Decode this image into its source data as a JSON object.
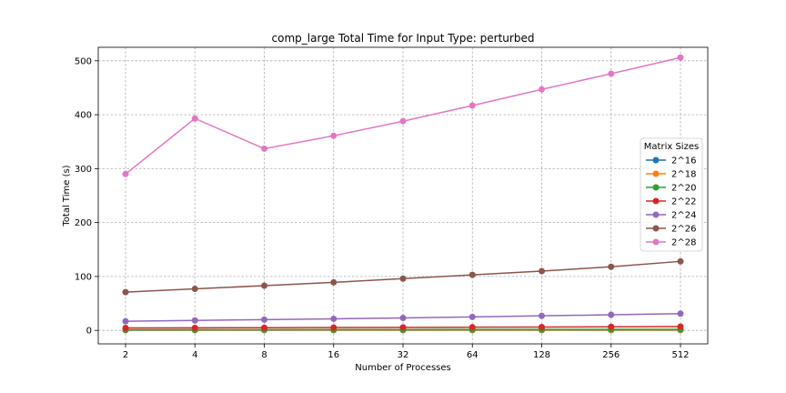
{
  "chart_data": {
    "type": "line",
    "title": "comp_large Total Time for Input Type: perturbed",
    "xlabel": "Number of Processes",
    "ylabel": "Total Time (s)",
    "categories": [
      "2",
      "4",
      "8",
      "16",
      "32",
      "64",
      "128",
      "256",
      "512"
    ],
    "ylim": [
      -25,
      525
    ],
    "yticks": [
      0,
      100,
      200,
      300,
      400,
      500
    ],
    "grid": true,
    "legend": {
      "title": "Matrix Sizes",
      "placement": "center-right"
    },
    "series": [
      {
        "name": "2^16",
        "color": "#1f77b4",
        "values": [
          0.4,
          0.4,
          0.4,
          0.4,
          0.4,
          0.4,
          0.4,
          0.4,
          0.4
        ]
      },
      {
        "name": "2^18",
        "color": "#ff7f0e",
        "values": [
          0.8,
          0.8,
          0.8,
          0.8,
          0.8,
          0.8,
          0.8,
          0.8,
          0.8
        ]
      },
      {
        "name": "2^20",
        "color": "#2ca02c",
        "values": [
          1.2,
          1.3,
          1.4,
          1.5,
          1.6,
          1.7,
          1.8,
          1.9,
          2.0
        ]
      },
      {
        "name": "2^22",
        "color": "#d62728",
        "values": [
          4.5,
          4.8,
          5.0,
          5.3,
          5.6,
          5.9,
          6.2,
          6.6,
          7.0
        ]
      },
      {
        "name": "2^24",
        "color": "#9467bd",
        "values": [
          17,
          18.5,
          20,
          21.5,
          23,
          25,
          27,
          29,
          31
        ]
      },
      {
        "name": "2^26",
        "color": "#8c564b",
        "values": [
          71,
          77,
          83,
          89,
          96,
          103,
          110,
          118,
          128
        ]
      },
      {
        "name": "2^28",
        "color": "#e377c2",
        "values": [
          290,
          393,
          337,
          361,
          388,
          417,
          447,
          476,
          506
        ]
      }
    ]
  }
}
